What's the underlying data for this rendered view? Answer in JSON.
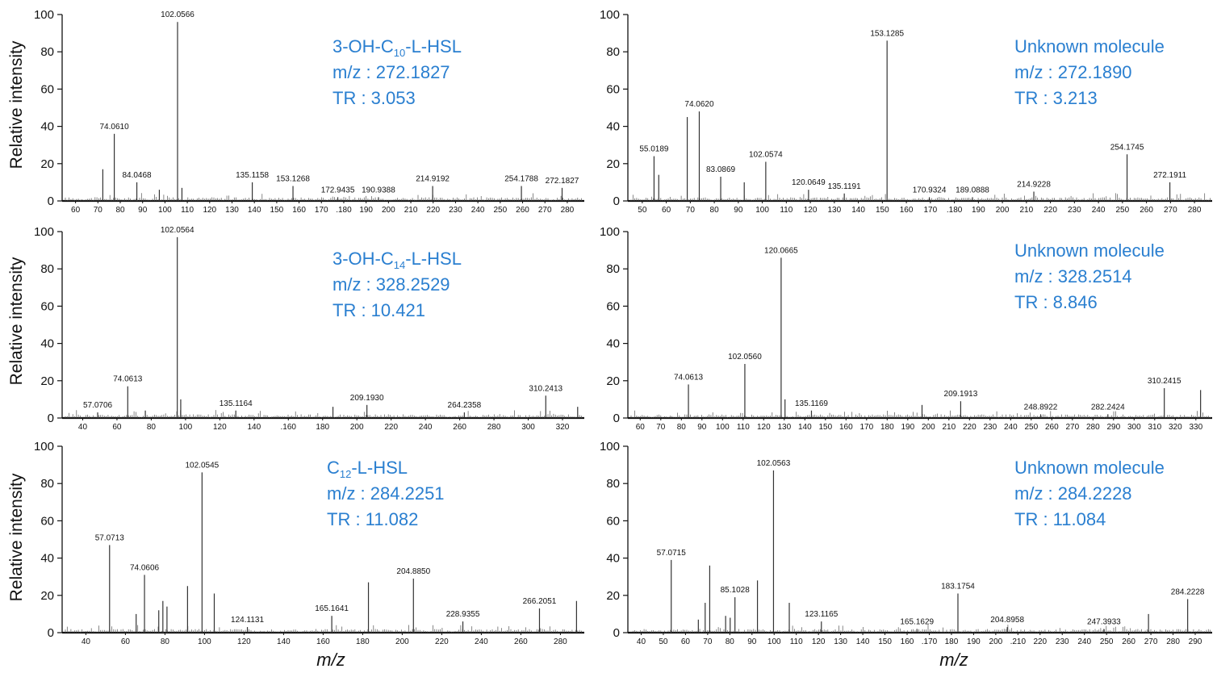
{
  "figure": {
    "x_axis_label": "m/z",
    "y_axis_label": "Relative intensity",
    "accent_color": "#2a7fd0"
  },
  "chart_data": [
    {
      "type": "bar",
      "panel": "top-left",
      "info": [
        {
          "t": "3-OH-C"
        },
        {
          "t": "10",
          "sub": true
        },
        {
          "t": "-L-HSL"
        }
      ],
      "info_mz": "m/z : 272.1827",
      "info_tr": "TR : 3.053",
      "xlim": [
        51,
        282
      ],
      "ylim": [
        0,
        100
      ],
      "yticks": [
        0,
        20,
        40,
        60,
        80,
        100
      ],
      "xticks": [
        "60",
        "70",
        "80",
        "90",
        "100",
        "110",
        "120",
        "130",
        "140",
        "150",
        "160",
        "170",
        ".180",
        "190",
        "200",
        "210",
        "220",
        "230",
        "240",
        "250",
        "260",
        "270",
        "280"
      ],
      "x": [
        69,
        74.061,
        84.0468,
        94,
        102.0566,
        104,
        135.1158,
        153.1268,
        172.9435,
        190.9388,
        214.9192,
        254.1788,
        272.1827
      ],
      "values": [
        17,
        36,
        10,
        6,
        96,
        7,
        10,
        8,
        2,
        2,
        8,
        8,
        7
      ],
      "labels": [
        "",
        "74.0610",
        "84.0468",
        "",
        "102.0566",
        "",
        "135.1158",
        "153.1268",
        "172.9435",
        "190.9388",
        "214.9192",
        "254.1788",
        "272.1827"
      ]
    },
    {
      "type": "bar",
      "panel": "top-right",
      "info": [
        {
          "t": "Unknown molecule"
        }
      ],
      "info_mz": "m/z : 272.1890",
      "info_tr": "TR : 3.213",
      "xlim": [
        44,
        290
      ],
      "ylim": [
        0,
        100
      ],
      "yticks": [
        0,
        20,
        40,
        60,
        80,
        100
      ],
      "xticks": [
        "50",
        "60",
        "70",
        "80",
        "90",
        "100",
        "110",
        "120",
        "130",
        "140",
        "150",
        "160",
        "170",
        ".180",
        "190",
        "200",
        "210",
        "220",
        "230",
        "240",
        "250",
        "260",
        "270",
        "280"
      ],
      "x": [
        55.0189,
        57,
        69,
        74.062,
        83.0869,
        93,
        102.0574,
        120.0649,
        135.1191,
        153.1285,
        170.9324,
        189.0888,
        214.9228,
        254.1745,
        272.1911
      ],
      "values": [
        24,
        14,
        45,
        48,
        13,
        10,
        21,
        6,
        4,
        86,
        2,
        2,
        5,
        25,
        10
      ],
      "labels": [
        "55.0189",
        "",
        "",
        "74.0620",
        "83.0869",
        "",
        "102.0574",
        "120.0649",
        "135.1191",
        "153.1285",
        "170.9324",
        "189.0888",
        "214.9228",
        "254.1745",
        "272.1911"
      ]
    },
    {
      "type": "bar",
      "panel": "middle-left",
      "info": [
        {
          "t": "3-OH-C"
        },
        {
          "t": "14",
          "sub": true
        },
        {
          "t": "-L-HSL"
        }
      ],
      "info_mz": "m/z : 328.2529",
      "info_tr": "TR : 10.421",
      "xlim": [
        37,
        332
      ],
      "ylim": [
        0,
        100
      ],
      "yticks": [
        0,
        20,
        40,
        60,
        80,
        100
      ],
      "xticks": [
        "40",
        "60",
        "80",
        "100",
        "120",
        "140",
        ".160",
        "180",
        "200",
        "220",
        "240",
        "260",
        "280",
        "300",
        "320"
      ],
      "x": [
        57.0706,
        74.0613,
        84,
        102.0564,
        104,
        135.1164,
        190,
        209.193,
        264.2358,
        310.2413,
        328.2529
      ],
      "values": [
        3,
        17,
        4,
        97,
        10,
        4,
        6,
        7,
        3,
        12,
        6
      ],
      "labels": [
        "57.0706",
        "74.0613",
        "",
        "102.0564",
        "",
        "135.1164",
        "",
        "209.1930",
        "264.2358",
        "310.2413",
        ""
      ]
    },
    {
      "type": "bar",
      "panel": "middle-right",
      "info": [
        {
          "t": "Unknown molecule"
        }
      ],
      "info_mz": "m/z : 328.2514",
      "info_tr": "TR : 8.846",
      "xlim": [
        44,
        334
      ],
      "ylim": [
        0,
        100
      ],
      "yticks": [
        0,
        20,
        40,
        60,
        80,
        100
      ],
      "xticks": [
        "60",
        "70",
        "80",
        "90",
        "100",
        "110",
        "120",
        "130",
        "140",
        "150",
        "160",
        "170",
        "180",
        "190",
        "200",
        "210",
        "220",
        "230",
        "240",
        "250",
        "260",
        "270",
        "280",
        "290",
        "300",
        "310",
        "320",
        "330"
      ],
      "x": [
        74.0613,
        102.056,
        120.0665,
        122,
        135.1169,
        190,
        209.1913,
        248.8922,
        282.2424,
        310.2415,
        328.2514
      ],
      "values": [
        18,
        29,
        86,
        10,
        4,
        7,
        9,
        2,
        2,
        16,
        15
      ],
      "labels": [
        "74.0613",
        "102.0560",
        "120.0665",
        "",
        "135.1169",
        "",
        "209.1913",
        "248.8922",
        "282.2424",
        "310.2415",
        ""
      ]
    },
    {
      "type": "bar",
      "panel": "bottom-left",
      "info": [
        {
          "t": "C"
        },
        {
          "t": "12",
          "sub": true
        },
        {
          "t": "-L-HSL"
        }
      ],
      "info_mz": "m/z : 284.2251",
      "info_tr": "TR : 11.082",
      "xlim": [
        34,
        288
      ],
      "ylim": [
        0,
        100
      ],
      "yticks": [
        0,
        20,
        40,
        60,
        80,
        100
      ],
      "xticks": [
        "40",
        "60",
        "80",
        "100",
        "120",
        "140",
        "160",
        "180",
        "200",
        "220",
        "240",
        "260",
        "280"
      ],
      "x": [
        57.0713,
        70,
        74.0606,
        81,
        83,
        85,
        95,
        102.0545,
        108,
        124.1131,
        165.1641,
        183,
        204.885,
        228.9355,
        266.2051,
        284.2251
      ],
      "values": [
        47,
        10,
        31,
        12,
        17,
        14,
        25,
        86,
        21,
        3,
        9,
        27,
        29,
        6,
        13,
        17
      ],
      "labels": [
        "57.0713",
        "",
        "74.0606",
        "",
        "",
        "",
        "",
        "102.0545",
        "",
        "124.1131",
        "165.1641",
        "",
        "204.8850",
        "228.9355",
        "266.2051",
        ""
      ]
    },
    {
      "type": "bar",
      "panel": "bottom-right",
      "info": [
        {
          "t": "Unknown molecule"
        }
      ],
      "info_mz": "m/z : 284.2228",
      "info_tr": "TR : 11.084",
      "xlim": [
        38,
        295
      ],
      "ylim": [
        0,
        100
      ],
      "yticks": [
        0,
        20,
        40,
        60,
        80,
        100
      ],
      "xticks": [
        "40",
        "50",
        "60",
        "70",
        "80",
        "90",
        "100",
        "110",
        "120",
        "130",
        "140",
        "150",
        "160",
        ".170",
        "180",
        "190",
        "200",
        ".210",
        "220",
        "230",
        "240",
        "250",
        "260",
        "270",
        "280",
        "290"
      ],
      "x": [
        57.0715,
        69,
        72,
        74,
        81,
        83,
        85.1028,
        95,
        102.0563,
        109,
        123.1165,
        165.1629,
        183.1754,
        204.8958,
        247.3933,
        267,
        284.2228
      ],
      "values": [
        39,
        7,
        16,
        36,
        9,
        8,
        19,
        28,
        87,
        16,
        6,
        2,
        21,
        3,
        2,
        10,
        18
      ],
      "labels": [
        "57.0715",
        "",
        "",
        "",
        "",
        "",
        "85.1028",
        "",
        "102.0563",
        "",
        "123.1165",
        "165.1629",
        "183.1754",
        "204.8958",
        "247.3933",
        "",
        "284.2228"
      ]
    }
  ]
}
